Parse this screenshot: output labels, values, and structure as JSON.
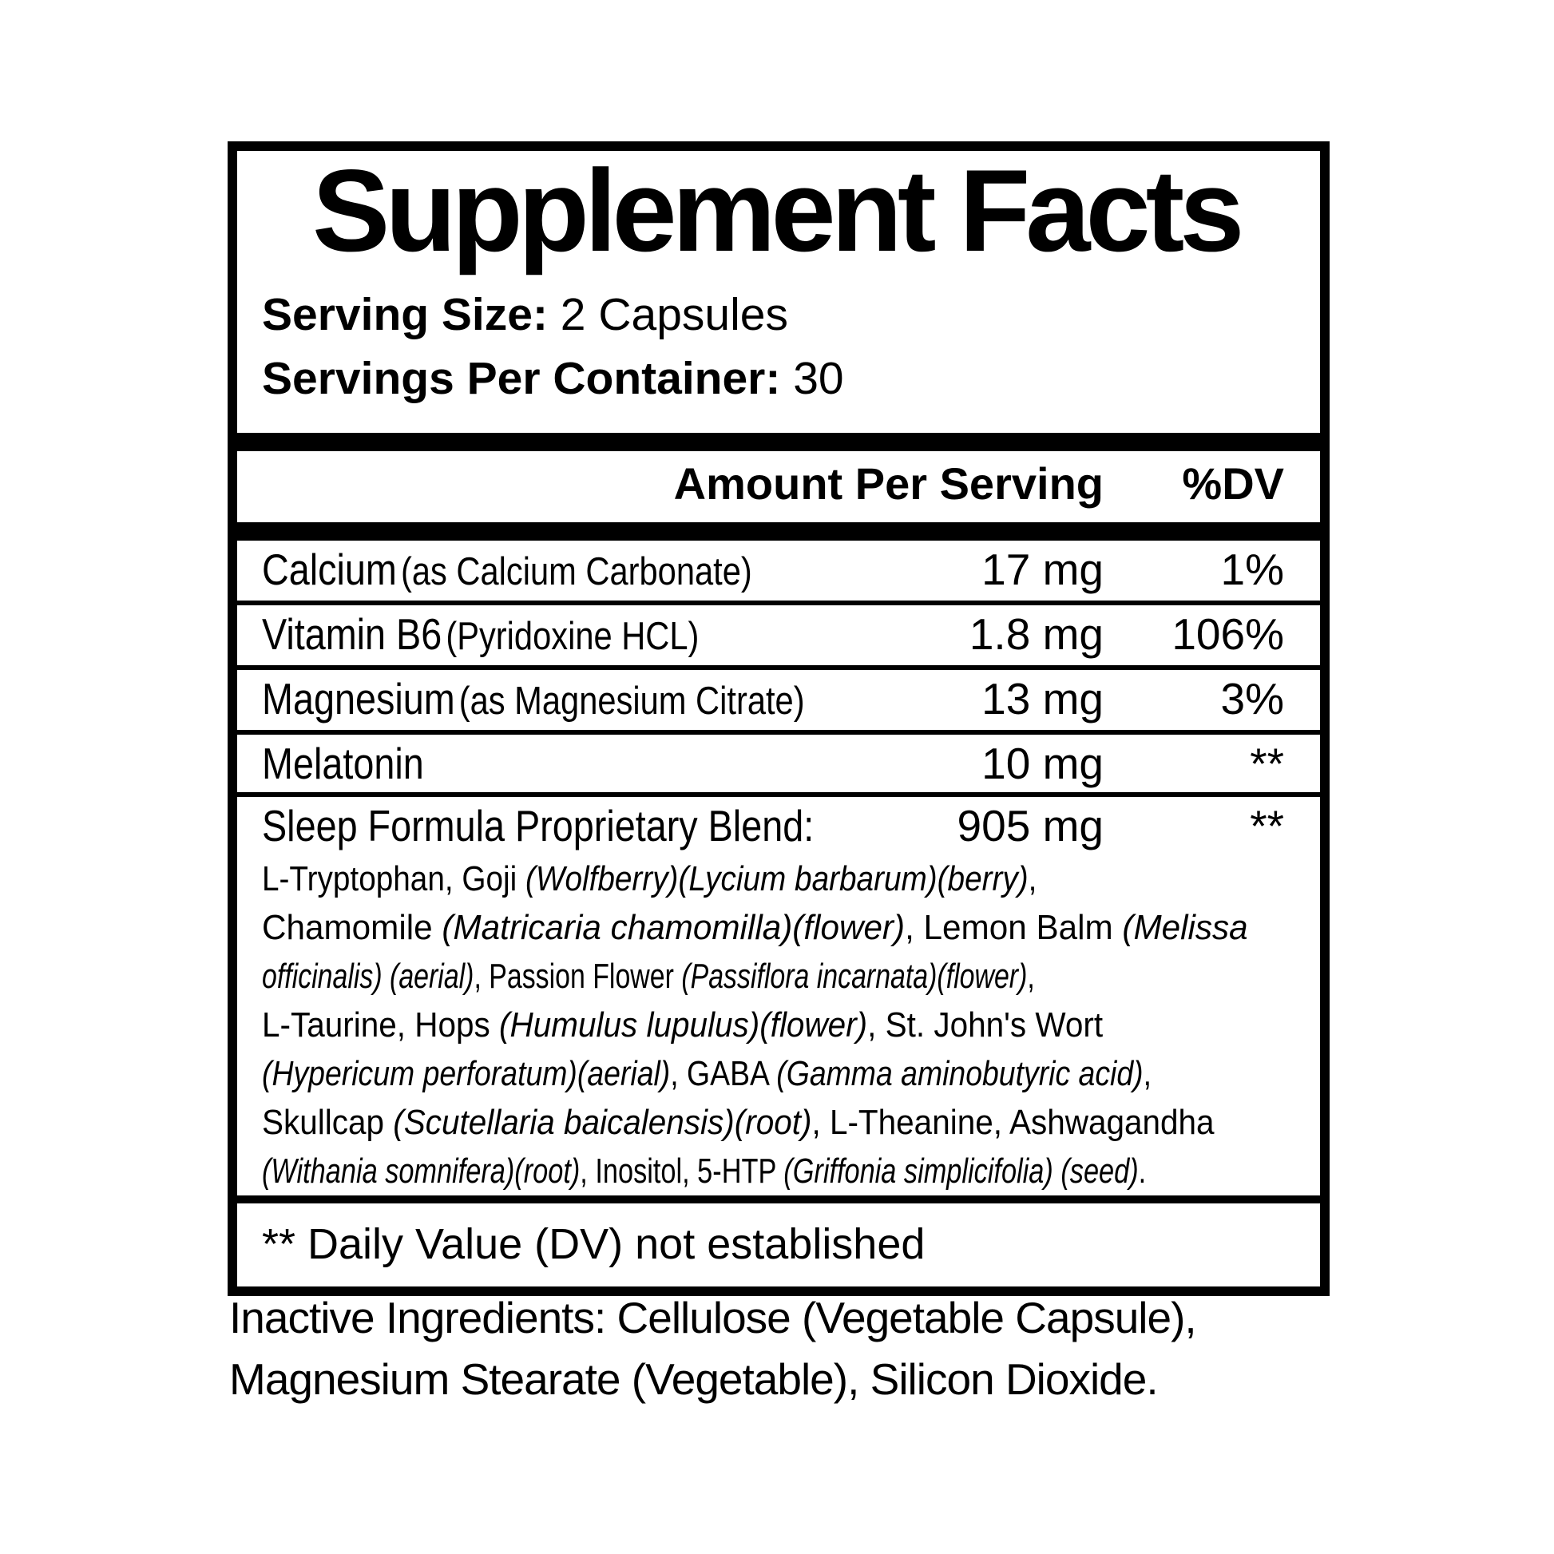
{
  "colors": {
    "ink": "#000000",
    "background": "#ffffff"
  },
  "label": {
    "title": "Supplement Facts",
    "serving_size": {
      "label": "Serving Size:",
      "value": "2 Capsules"
    },
    "servings_per_container": {
      "label": "Servings Per Container:",
      "value": "30"
    },
    "header": {
      "amount": "Amount Per Serving",
      "dv": "%DV"
    },
    "rows": [
      {
        "name": "Calcium",
        "detail": "(as Calcium Carbonate)",
        "amount": "17 mg",
        "dv": "1%"
      },
      {
        "name": "Vitamin B6",
        "detail": "(Pyridoxine HCL)",
        "amount": "1.8 mg",
        "dv": "106%"
      },
      {
        "name": "Magnesium",
        "detail": "(as Magnesium Citrate)",
        "amount": "13 mg",
        "dv": "3%"
      },
      {
        "name": "Melatonin",
        "detail": "",
        "amount": "10 mg",
        "dv": "**"
      },
      {
        "name": "Sleep Formula Proprietary Blend:",
        "detail": "",
        "amount": "905 mg",
        "dv": "**"
      }
    ],
    "blend_lines": [
      [
        {
          "t": "L-Tryptophan, Goji ",
          "i": false
        },
        {
          "t": "(Wolfberry)(Lycium barbarum)(berry)",
          "i": true
        },
        {
          "t": ",",
          "i": false
        }
      ],
      [
        {
          "t": "Chamomile ",
          "i": false
        },
        {
          "t": "(Matricaria chamomilla)(flower)",
          "i": true
        },
        {
          "t": ", Lemon Balm ",
          "i": false
        },
        {
          "t": "(Melissa",
          "i": true
        }
      ],
      [
        {
          "t": "officinalis) (aerial)",
          "i": true
        },
        {
          "t": ", Passion Flower ",
          "i": false
        },
        {
          "t": "(Passiflora incarnata)(flower)",
          "i": true
        },
        {
          "t": ",",
          "i": false
        }
      ],
      [
        {
          "t": "L-Taurine, Hops ",
          "i": false
        },
        {
          "t": "(Humulus lupulus)(flower)",
          "i": true
        },
        {
          "t": ", St. John's Wort",
          "i": false
        }
      ],
      [
        {
          "t": "(Hypericum perforatum)(aerial)",
          "i": true
        },
        {
          "t": ", GABA ",
          "i": false
        },
        {
          "t": "(Gamma aminobutyric acid)",
          "i": true
        },
        {
          "t": ",",
          "i": false
        }
      ],
      [
        {
          "t": "Skullcap ",
          "i": false
        },
        {
          "t": "(Scutellaria baicalensis)(root)",
          "i": true
        },
        {
          "t": ", L-Theanine, Ashwagandha",
          "i": false
        }
      ],
      [
        {
          "t": "(Withania somnifera)(root)",
          "i": true
        },
        {
          "t": ", Inositol, 5-HTP ",
          "i": false
        },
        {
          "t": "(Griffonia simplicifolia) (seed)",
          "i": true
        },
        {
          "t": ".",
          "i": false
        }
      ]
    ],
    "footnote": "** Daily Value (DV) not established"
  },
  "footer": {
    "line1": "Inactive Ingredients: Cellulose (Vegetable Capsule),",
    "line2": "Magnesium Stearate (Vegetable), Silicon Dioxide."
  }
}
